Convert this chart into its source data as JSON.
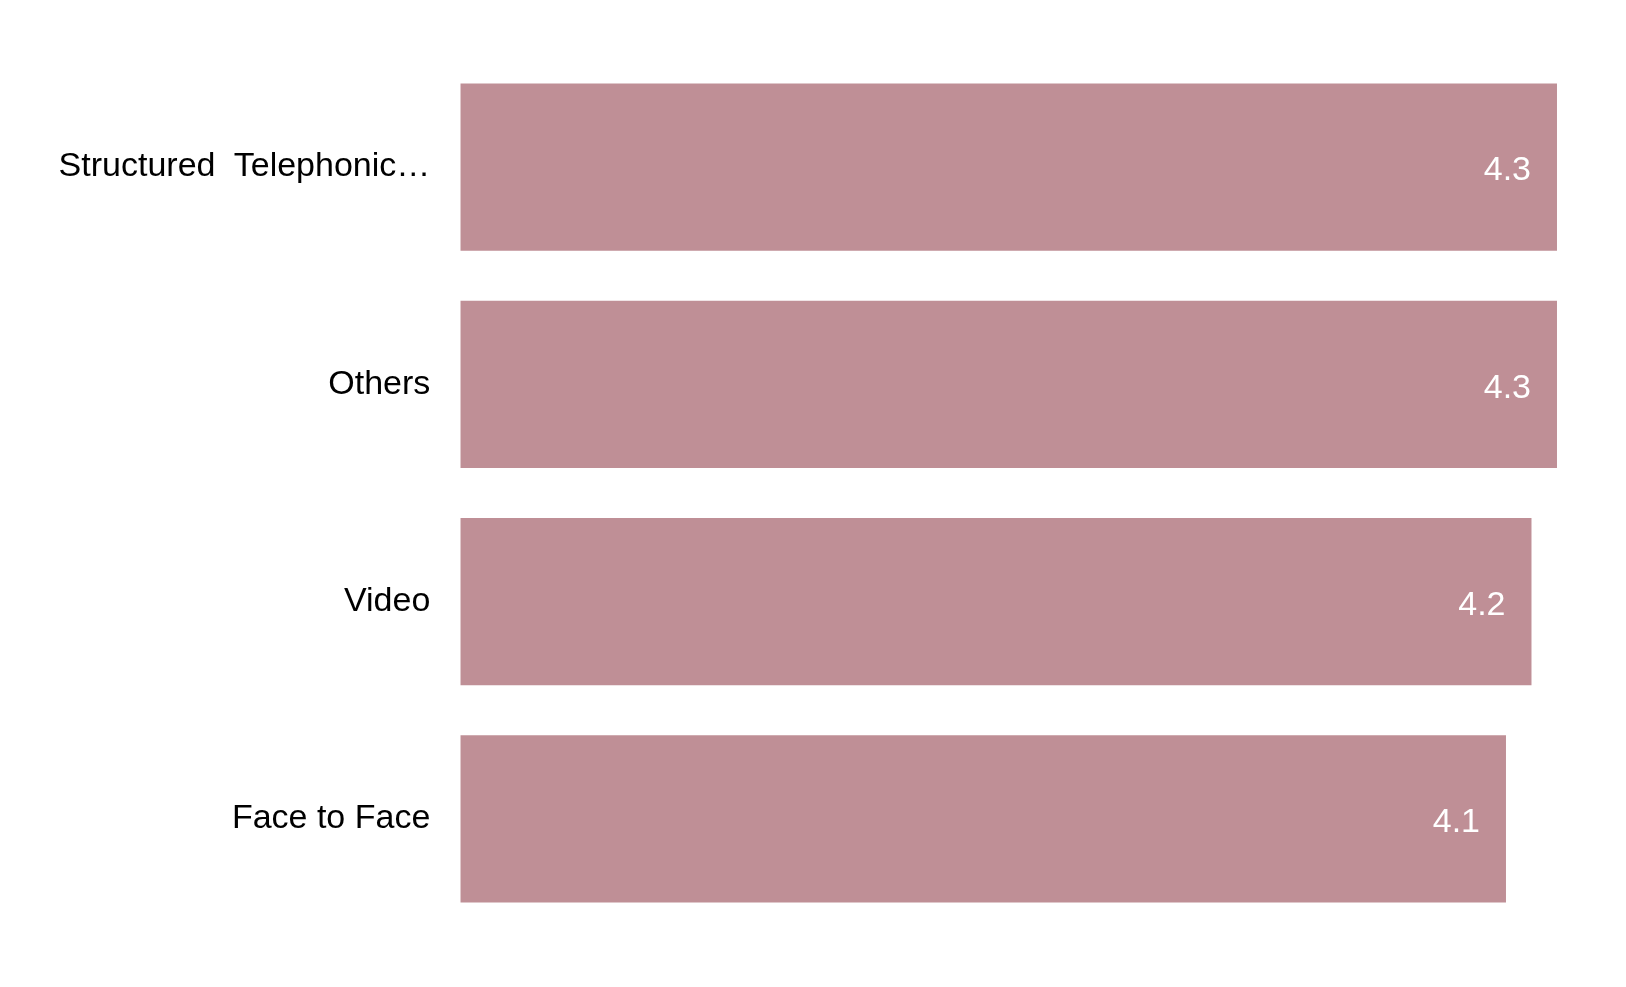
{
  "chart_data": {
    "type": "bar",
    "orientation": "horizontal",
    "categories": [
      "Structured  Telephonic…",
      "Others",
      "Video",
      "Face to Face"
    ],
    "series": [
      {
        "color": "#bf8f96",
        "values": [
          4.3,
          4.3,
          4.2,
          4.1
        ]
      }
    ],
    "data_labels": true,
    "grid": false,
    "legend": false
  }
}
